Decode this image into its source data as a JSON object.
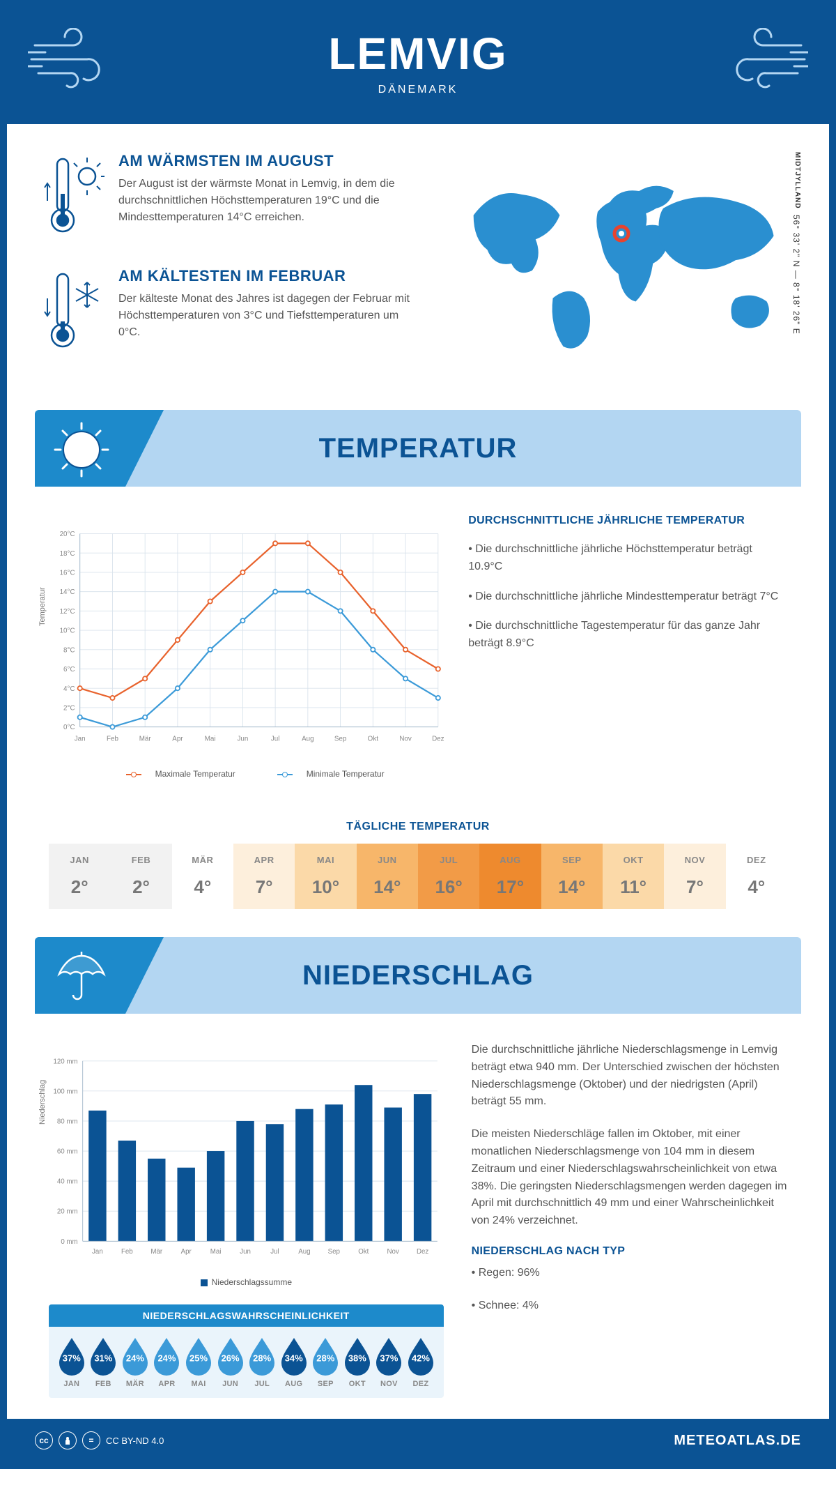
{
  "header": {
    "title": "LEMVIG",
    "subtitle": "DÄNEMARK"
  },
  "intro": {
    "hot": {
      "title": "AM WÄRMSTEN IM AUGUST",
      "body": "Der August ist der wärmste Monat in Lemvig, in dem die durchschnittlichen Höchsttemperaturen 19°C und die Mindesttemperaturen 14°C erreichen."
    },
    "cold": {
      "title": "AM KÄLTESTEN IM FEBRUAR",
      "body": "Der kälteste Monat des Jahres ist dagegen der Februar mit Höchsttemperaturen von 3°C und Tiefsttemperaturen um 0°C."
    },
    "coords": "56° 33' 2\" N — 8° 18' 26\" E",
    "region": "MIDTJYLLAND",
    "marker": {
      "left_pct": 50,
      "top_pct": 33
    }
  },
  "temp": {
    "section_title": "TEMPERATUR",
    "chart": {
      "type": "line",
      "months": [
        "Jan",
        "Feb",
        "Mär",
        "Apr",
        "Mai",
        "Jun",
        "Jul",
        "Aug",
        "Sep",
        "Okt",
        "Nov",
        "Dez"
      ],
      "ylabel": "Temperatur",
      "ylim": [
        0,
        20
      ],
      "ytick_step": 2,
      "ytick_suffix": "°C",
      "series": [
        {
          "name": "Maximale Temperatur",
          "color": "#e8622c",
          "values": [
            4,
            3,
            5,
            9,
            13,
            16,
            19,
            19,
            16,
            12,
            8,
            6
          ]
        },
        {
          "name": "Minimale Temperatur",
          "color": "#3b9ad8",
          "values": [
            1,
            0,
            1,
            4,
            8,
            11,
            14,
            14,
            12,
            8,
            5,
            3
          ]
        }
      ],
      "grid_color": "#d9e3ec",
      "axis_color": "#9fb6c8",
      "line_width": 2.5,
      "marker_radius": 3.5,
      "marker_fill": "#ffffff",
      "label_fontsize": 11,
      "label_color": "#888"
    },
    "text": {
      "heading": "DURCHSCHNITTLICHE JÄHRLICHE TEMPERATUR",
      "bullets": [
        "• Die durchschnittliche jährliche Höchsttemperatur beträgt 10.9°C",
        "• Die durchschnittliche jährliche Mindesttemperatur beträgt 7°C",
        "• Die durchschnittliche Tagestemperatur für das ganze Jahr beträgt 8.9°C"
      ]
    },
    "daily": {
      "title": "TÄGLICHE TEMPERATUR",
      "months": [
        "JAN",
        "FEB",
        "MÄR",
        "APR",
        "MAI",
        "JUN",
        "JUL",
        "AUG",
        "SEP",
        "OKT",
        "NOV",
        "DEZ"
      ],
      "values": [
        "2°",
        "2°",
        "4°",
        "7°",
        "10°",
        "14°",
        "16°",
        "17°",
        "14°",
        "11°",
        "7°",
        "4°"
      ],
      "colors": [
        "#f2f2f2",
        "#f2f2f2",
        "#ffffff",
        "#fdefdc",
        "#fbd9a8",
        "#f7b66a",
        "#f29b47",
        "#ee8a2e",
        "#f7b66a",
        "#fbd9a8",
        "#fdefdc",
        "#ffffff"
      ]
    }
  },
  "precip": {
    "section_title": "NIEDERSCHLAG",
    "chart": {
      "type": "bar",
      "months": [
        "Jan",
        "Feb",
        "Mär",
        "Apr",
        "Mai",
        "Jun",
        "Jul",
        "Aug",
        "Sep",
        "Okt",
        "Nov",
        "Dez"
      ],
      "values": [
        87,
        67,
        55,
        49,
        60,
        80,
        78,
        88,
        91,
        104,
        89,
        98
      ],
      "ylabel": "Niederschlag",
      "ylim": [
        0,
        120
      ],
      "ytick_step": 20,
      "ytick_suffix": " mm",
      "bar_color": "#0b5394",
      "bar_width": 0.6,
      "grid_color": "#d9e3ec",
      "axis_color": "#9fb6c8",
      "label_fontsize": 11,
      "label_color": "#888",
      "legend": "Niederschlagssumme"
    },
    "text": {
      "p1": "Die durchschnittliche jährliche Niederschlagsmenge in Lemvig beträgt etwa 940 mm. Der Unterschied zwischen der höchsten Niederschlagsmenge (Oktober) und der niedrigsten (April) beträgt 55 mm.",
      "p2": "Die meisten Niederschläge fallen im Oktober, mit einer monatlichen Niederschlagsmenge von 104 mm in diesem Zeitraum und einer Niederschlagswahrscheinlichkeit von etwa 38%. Die geringsten Niederschlagsmengen werden dagegen im April mit durchschnittlich 49 mm und einer Wahrscheinlichkeit von 24% verzeichnet.",
      "type_heading": "NIEDERSCHLAG NACH TYP",
      "type_bullets": [
        "• Regen: 96%",
        "• Schnee: 4%"
      ]
    },
    "prob": {
      "title": "NIEDERSCHLAGSWAHRSCHEINLICHKEIT",
      "months": [
        "JAN",
        "FEB",
        "MÄR",
        "APR",
        "MAI",
        "JUN",
        "JUL",
        "AUG",
        "SEP",
        "OKT",
        "NOV",
        "DEZ"
      ],
      "values": [
        "37%",
        "31%",
        "24%",
        "24%",
        "25%",
        "26%",
        "28%",
        "34%",
        "28%",
        "38%",
        "37%",
        "42%"
      ],
      "colors": [
        "#0b5394",
        "#0b5394",
        "#3b9ad8",
        "#3b9ad8",
        "#3b9ad8",
        "#3b9ad8",
        "#3b9ad8",
        "#0b5394",
        "#3b9ad8",
        "#0b5394",
        "#0b5394",
        "#0b5394"
      ],
      "drop_outline": "#0b5394"
    }
  },
  "footer": {
    "license": "CC BY-ND 4.0",
    "brand": "METEOATLAS.DE"
  },
  "colors": {
    "primary": "#0b5394",
    "secondary": "#1d8acb",
    "light": "#b3d6f2",
    "map": "#2a8fd0"
  }
}
